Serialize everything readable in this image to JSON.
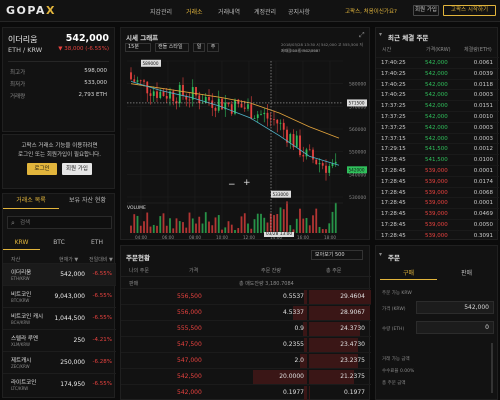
{
  "header": {
    "logo_main": "GOPA",
    "logo_accent": "X",
    "nav": [
      "지갑관리",
      "거래소",
      "거래내역",
      "계정관리",
      "공지사항"
    ],
    "active_nav": 1,
    "welcome": "고팍스, 처음이신가요?",
    "signup_label": "회원 가입",
    "start_label": "고팍스 시작하기"
  },
  "coin": {
    "name": "이더리움",
    "pair": "ETH / KRW",
    "price": "542,000",
    "change": "▼ 38,000 (-6.55%)",
    "stats": [
      {
        "label": "최고가",
        "value": "598,000"
      },
      {
        "label": "최저가",
        "value": "533,000"
      },
      {
        "label": "거래량",
        "value": "2,793 ETH"
      }
    ]
  },
  "login_prompt": {
    "text1": "고팍스 거래소 기능을 이용하려면",
    "text2": "로그인 또는 회원가입이 필요합니다.",
    "login_label": "로그인",
    "signup_label": "회원 가입"
  },
  "market": {
    "tabs": [
      "거래소 목록",
      "보유 자산 현황"
    ],
    "search_placeholder": "검색",
    "quote_tabs": [
      "KRW",
      "BTC",
      "ETH"
    ],
    "columns": [
      "자산",
      "현재가 ▼",
      "전일대비 ▼"
    ],
    "rows": [
      {
        "name": "이더리움",
        "pair": "ETH/KRW",
        "price": "542,000",
        "change": "-6.55%"
      },
      {
        "name": "비트코인",
        "pair": "BTC/KRW",
        "price": "9,043,000",
        "change": "-6.55%"
      },
      {
        "name": "비트코인 캐시",
        "pair": "BCH/KRW",
        "price": "1,044,500",
        "change": "-6.55%"
      },
      {
        "name": "스텔라 루멘",
        "pair": "XLM/KRW",
        "price": "250",
        "change": "-4.21%"
      },
      {
        "name": "제트캐시",
        "pair": "ZEC/KRW",
        "price": "250,000",
        "change": "-6.28%"
      },
      {
        "name": "라이트코인",
        "pair": "LTC/KRW",
        "price": "174,950",
        "change": "-6.55%"
      }
    ]
  },
  "chart": {
    "title": "시세 그래프",
    "interval": "15분",
    "style": "캔들 스타일",
    "toolbar": [
      "일",
      "주"
    ],
    "header_info": "2018/03/28 13:30 시 542,000 고 555,500 저 533,000 종 542,000",
    "header_info2": "거래량 165.95133587",
    "volume_label": "VOLUME",
    "time_cursor": "03/28 13:00",
    "price_labels": [
      "580000",
      "570000",
      "560000",
      "550000",
      "540000",
      "530000"
    ],
    "markers": {
      "high": "589000",
      "line": "571500",
      "current": "542000",
      "low": "533000"
    },
    "x_labels": [
      "04:00",
      "06:00",
      "08:00",
      "10:00",
      "12:00",
      "14:00",
      "16:00",
      "18:00"
    ],
    "expand_icon": "⤢",
    "minus_label": "−",
    "plus_label": "+"
  },
  "chart_data": {
    "type": "candlestick",
    "title": "시세 그래프",
    "ylim": [
      530000,
      590000
    ],
    "x": [
      "04:00",
      "06:00",
      "08:00",
      "10:00",
      "12:00",
      "14:00",
      "16:00",
      "18:00"
    ],
    "close": [
      582000,
      576000,
      575000,
      572000,
      569000,
      563000,
      548000,
      542000
    ],
    "ma_short": [
      581000,
      577000,
      574000,
      570000,
      565000,
      557000,
      548000,
      544000
    ],
    "ma_long": [
      580000,
      578000,
      576000,
      574000,
      571500,
      567000,
      561000,
      556000
    ]
  },
  "orderbook": {
    "title": "주문현황",
    "unit": "모아보기 500",
    "columns": [
      "나의 주문",
      "가격",
      "주문 잔량",
      "총 주문"
    ],
    "summary_label": "판매",
    "summary_value": "총 매도잔량 3,180.7084",
    "rows": [
      {
        "price": "556,500",
        "qty": "0.5537",
        "total": "29.4604"
      },
      {
        "price": "556,000",
        "qty": "4.5337",
        "total": "28.9067"
      },
      {
        "price": "555,500",
        "qty": "0.9",
        "total": "24.3730"
      },
      {
        "price": "547,500",
        "qty": "0.2355",
        "total": "23.4730"
      },
      {
        "price": "547,000",
        "qty": "2.0",
        "total": "23.2375"
      },
      {
        "price": "542,500",
        "qty": "20.0000",
        "total": "21.2375"
      },
      {
        "price": "542,000",
        "qty": "0.1977",
        "total": "0.1977"
      }
    ]
  },
  "trades": {
    "title": "최근 체결 주문",
    "columns": [
      "시간",
      "가격(KRW)",
      "체결량(ETH)"
    ],
    "rows": [
      {
        "time": "17:40:25",
        "price": "542,000",
        "qty": "0.0061",
        "dir": "up"
      },
      {
        "time": "17:40:25",
        "price": "542,000",
        "qty": "0.0039",
        "dir": "up"
      },
      {
        "time": "17:40:25",
        "price": "542,000",
        "qty": "0.0118",
        "dir": "up"
      },
      {
        "time": "17:40:25",
        "price": "542,000",
        "qty": "0.0003",
        "dir": "up"
      },
      {
        "time": "17:37:25",
        "price": "542,000",
        "qty": "0.0151",
        "dir": "up"
      },
      {
        "time": "17:37:25",
        "price": "542,000",
        "qty": "0.0010",
        "dir": "up"
      },
      {
        "time": "17:37:25",
        "price": "542,000",
        "qty": "0.0003",
        "dir": "up"
      },
      {
        "time": "17:37:15",
        "price": "542,000",
        "qty": "0.0003",
        "dir": "up"
      },
      {
        "time": "17:29:15",
        "price": "541,500",
        "qty": "0.0012",
        "dir": "up"
      },
      {
        "time": "17:28:45",
        "price": "541,500",
        "qty": "0.0100",
        "dir": "up"
      },
      {
        "time": "17:28:45",
        "price": "539,000",
        "qty": "0.0001",
        "dir": "dn"
      },
      {
        "time": "17:28:45",
        "price": "539,000",
        "qty": "0.0174",
        "dir": "dn"
      },
      {
        "time": "17:28:45",
        "price": "539,000",
        "qty": "0.0068",
        "dir": "dn"
      },
      {
        "time": "17:28:45",
        "price": "539,000",
        "qty": "0.0001",
        "dir": "dn"
      },
      {
        "time": "17:28:45",
        "price": "539,000",
        "qty": "0.0469",
        "dir": "dn"
      },
      {
        "time": "17:28:45",
        "price": "539,000",
        "qty": "0.0050",
        "dir": "dn"
      },
      {
        "time": "17:28:45",
        "price": "539,000",
        "qty": "0.3091",
        "dir": "dn"
      }
    ]
  },
  "order": {
    "title": "주문",
    "tabs": [
      "구매",
      "판매"
    ],
    "available_label": "주문 가능 KRW",
    "price_label": "가격 (KRW)",
    "price_value": "542,000",
    "amount_label": "수량 (ETH)",
    "amount_value": "0",
    "fee_label1": "거래 가능 금액",
    "fee_label2": "수수료율 0.00%",
    "fee_label3": "총 주문 금액",
    "colors": {
      "up": "#2fbf5b",
      "down": "#e8423f",
      "accent": "#e2b53c"
    }
  }
}
